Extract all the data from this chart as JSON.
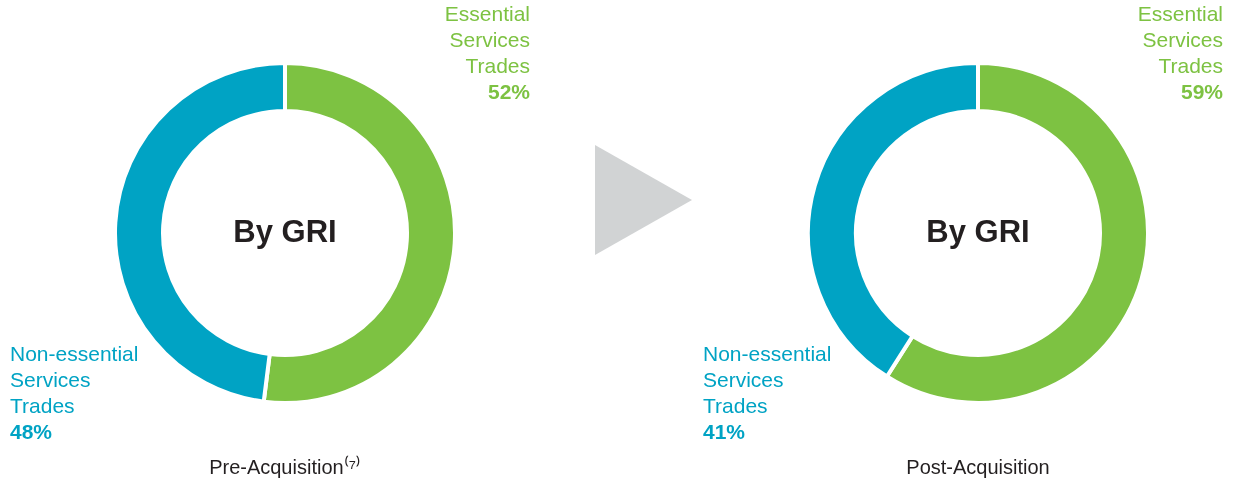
{
  "chart_data": [
    {
      "type": "donut",
      "title": "Pre-Acquisition⁽⁷⁾",
      "annotations": [
        "By GRI"
      ],
      "categories": [
        "Essential Services Trades",
        "Non-essential Services Trades"
      ],
      "values": [
        52,
        48
      ],
      "value_labels": [
        "52%",
        "48%"
      ],
      "colors": [
        "#7dc242",
        "#00a3c4"
      ]
    },
    {
      "type": "donut",
      "title": "Post-Acquisition",
      "annotations": [
        "By GRI"
      ],
      "categories": [
        "Essential Services Trades",
        "Non-essential Services Trades"
      ],
      "values": [
        59,
        41
      ],
      "value_labels": [
        "59%",
        "41%"
      ],
      "colors": [
        "#7dc242",
        "#00a3c4"
      ]
    }
  ]
}
